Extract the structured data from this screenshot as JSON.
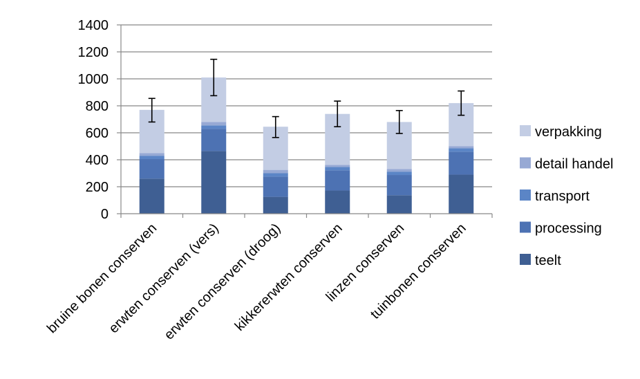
{
  "chart_data": {
    "type": "bar",
    "stacked": true,
    "categories": [
      "bruine bonen conserven",
      "erwten conserven (vers)",
      "erwten conserven (droog)",
      "kikkererwten conserven",
      "linzen conserven",
      "tuinbonen conserven"
    ],
    "series": [
      {
        "name": "teelt",
        "values": [
          260,
          465,
          125,
          172,
          137,
          290
        ],
        "color": "#3f5f93"
      },
      {
        "name": "processing",
        "values": [
          145,
          165,
          150,
          150,
          150,
          170
        ],
        "color": "#4d72b3"
      },
      {
        "name": "transport",
        "values": [
          25,
          25,
          25,
          25,
          25,
          25
        ],
        "color": "#5b85c6"
      },
      {
        "name": "detail handel",
        "values": [
          20,
          25,
          25,
          15,
          20,
          15
        ],
        "color": "#97a9d4"
      },
      {
        "name": "verpakking",
        "values": [
          320,
          330,
          320,
          378,
          348,
          320
        ],
        "color": "#c3cde4"
      }
    ],
    "error_bars": {
      "lower": [
        680,
        875,
        565,
        645,
        595,
        730
      ],
      "upper": [
        855,
        1145,
        720,
        835,
        765,
        910
      ]
    },
    "yticks": [
      "0",
      "200",
      "400",
      "600",
      "800",
      "1000",
      "1200",
      "1400"
    ],
    "ylim": [
      0,
      1400
    ],
    "ystep": 200,
    "grid": true,
    "legend_position": "right",
    "legend_order": [
      "verpakking",
      "detail handel",
      "transport",
      "processing",
      "teelt"
    ],
    "title": "",
    "xlabel": "",
    "ylabel": ""
  }
}
